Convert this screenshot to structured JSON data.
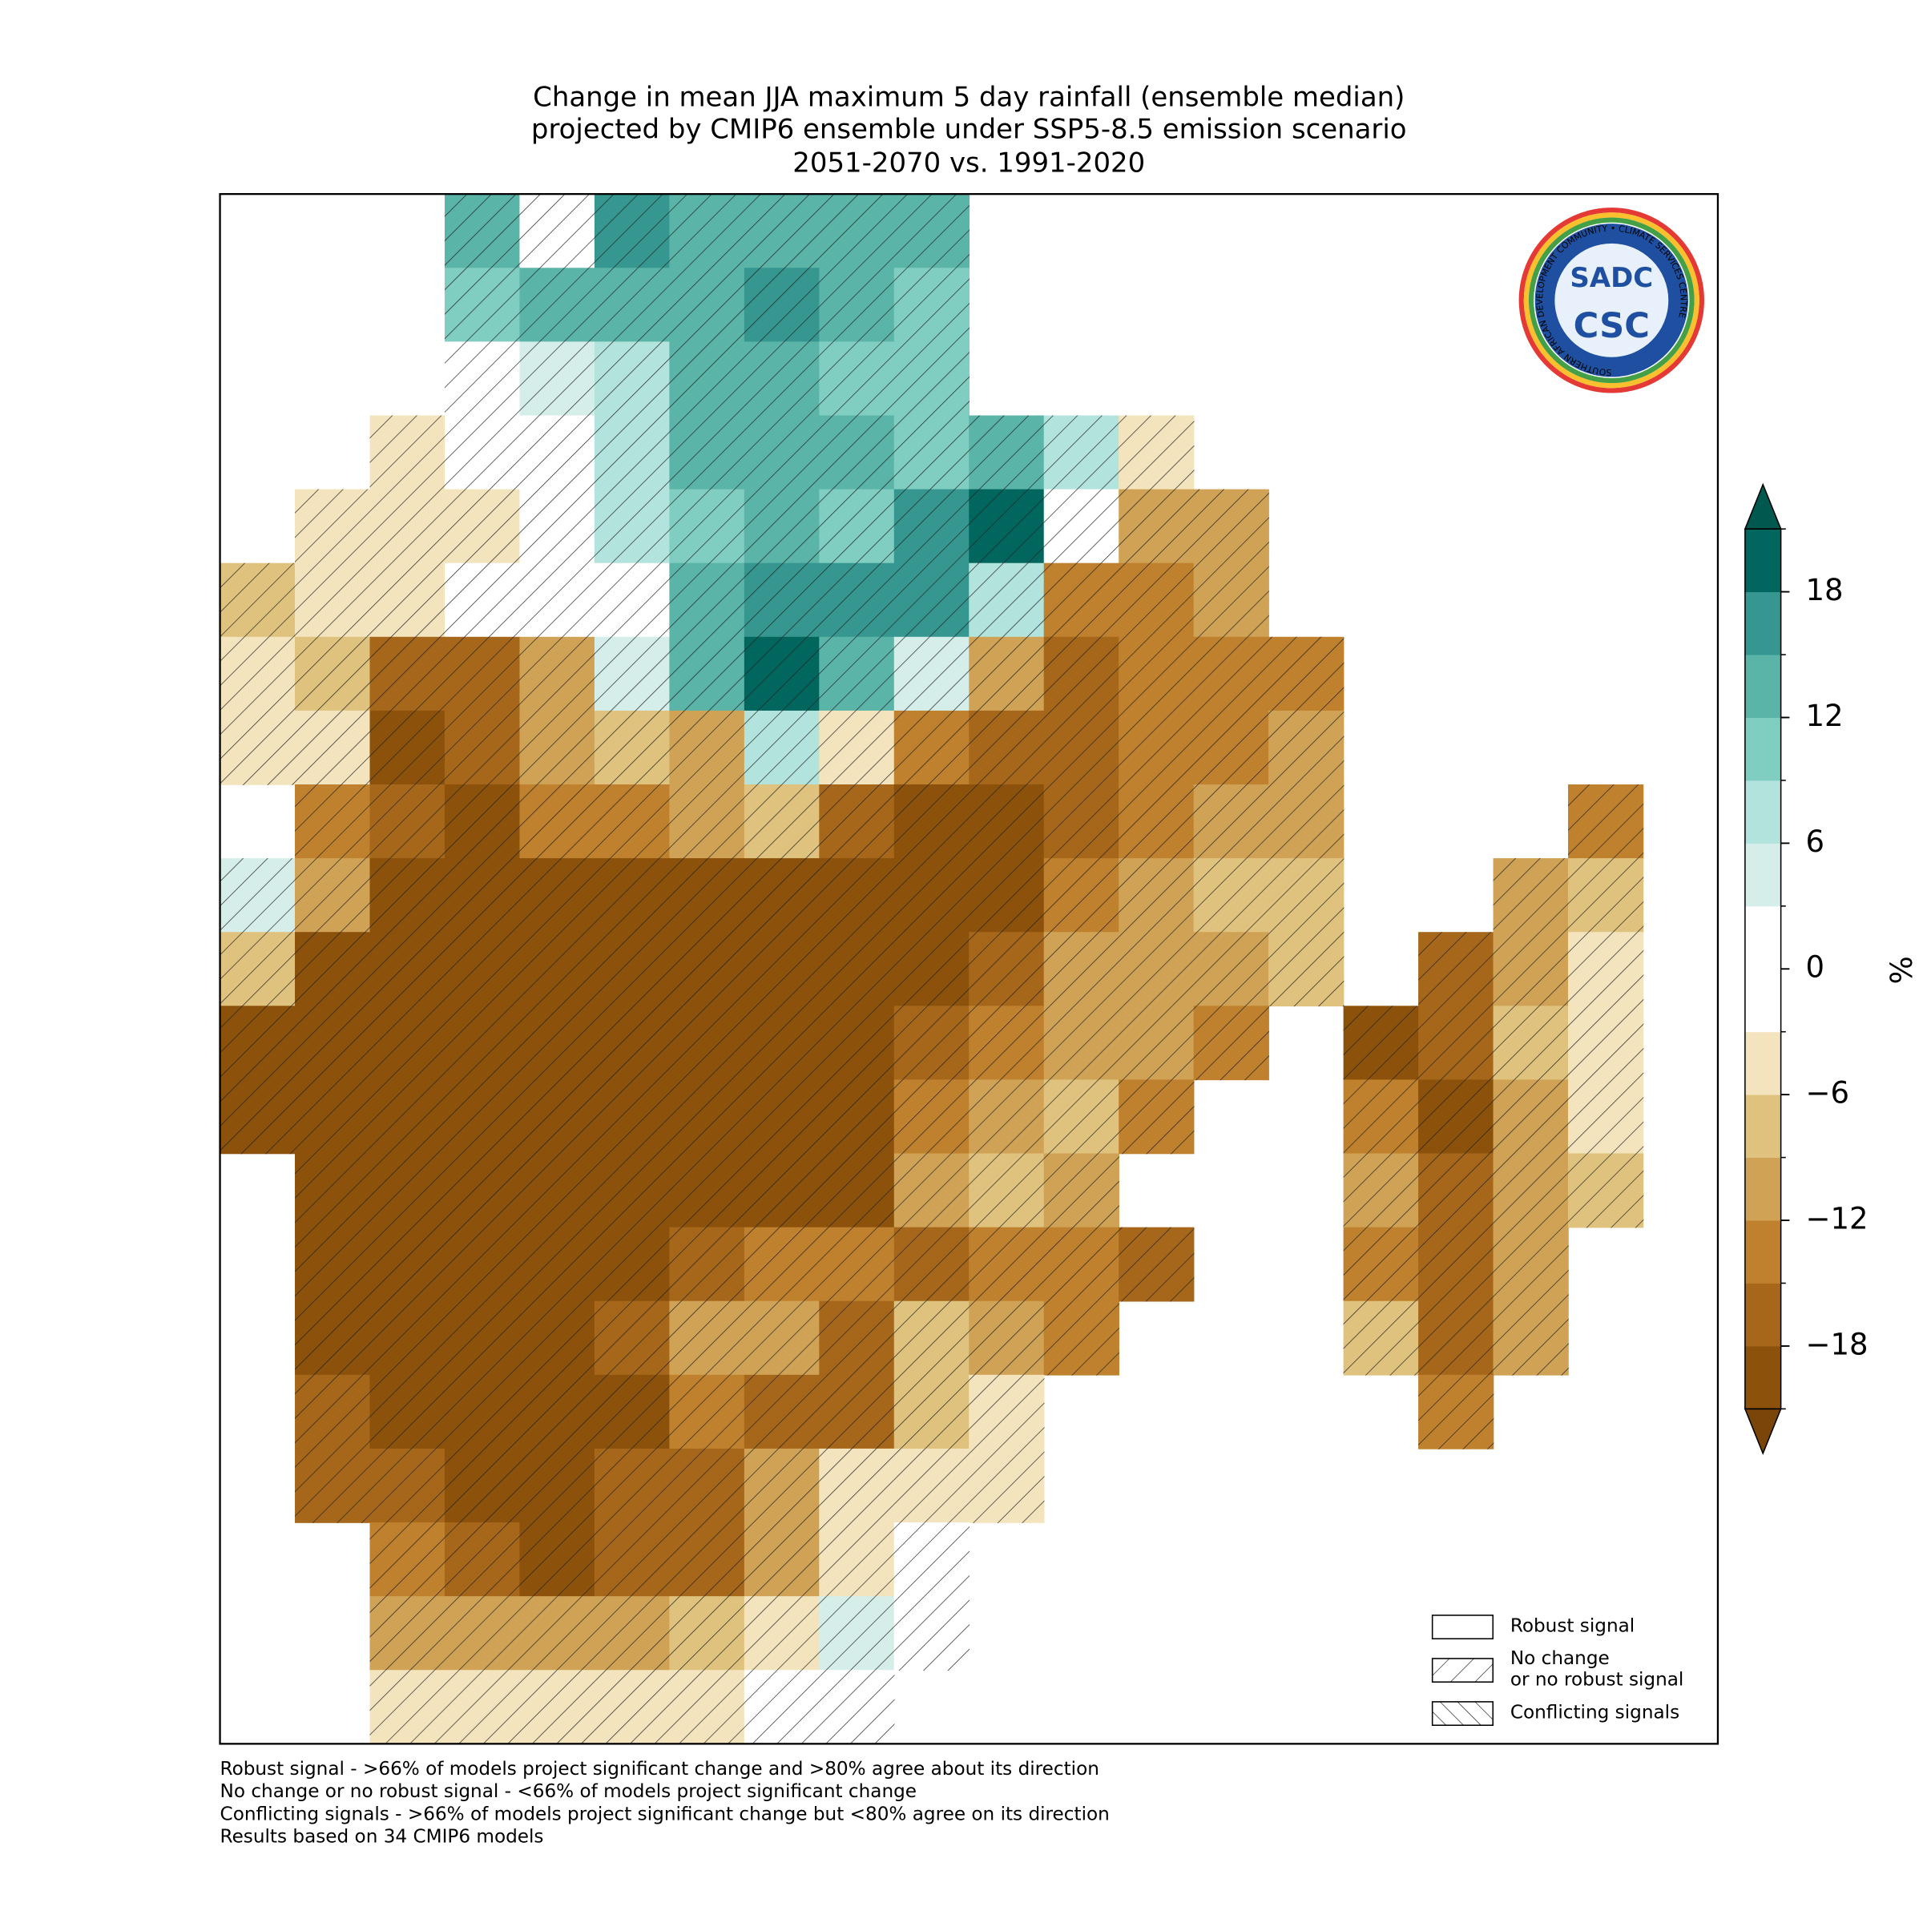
{
  "chart_data": {
    "type": "map",
    "title": [
      "Change in mean JJA maximum 5 day rainfall (ensemble median)",
      "projected by CMIP6 ensemble under SSP5-8.5 emission scenario",
      "2051-2070 vs. 1991-2020"
    ],
    "grid": [
      [
        null,
        null,
        null,
        14,
        2,
        16,
        14,
        14,
        13,
        12,
        null,
        null,
        null,
        null,
        null,
        null,
        null,
        null,
        null,
        null
      ],
      [
        null,
        null,
        null,
        9,
        14,
        13,
        14,
        16,
        12,
        10,
        null,
        null,
        null,
        null,
        null,
        null,
        null,
        null,
        null,
        null
      ],
      [
        null,
        null,
        null,
        1,
        3,
        8,
        14,
        12,
        11,
        10,
        null,
        null,
        null,
        null,
        null,
        null,
        null,
        null,
        null,
        null
      ],
      [
        null,
        null,
        -4,
        -2,
        0,
        6,
        12,
        12,
        14,
        10,
        12,
        8,
        -6,
        null,
        null,
        null,
        null,
        null,
        null,
        null
      ],
      [
        null,
        -6,
        -5,
        -4,
        0,
        8,
        10,
        12,
        10,
        16,
        18,
        2,
        -10,
        -12,
        null,
        null,
        null,
        null,
        null,
        null
      ],
      [
        -8,
        -6,
        -5,
        -2,
        -1,
        2,
        12,
        16,
        16,
        16,
        6,
        -15,
        -14,
        -12,
        null,
        null,
        null,
        null,
        null,
        null
      ],
      [
        -6,
        -7,
        -18,
        -18,
        -10,
        3,
        14,
        20,
        14,
        4,
        -12,
        -16,
        -15,
        -14,
        -15,
        null,
        null,
        null,
        null,
        null
      ],
      [
        -6,
        -4,
        -20,
        -16,
        -12,
        -8,
        -10,
        8,
        -6,
        -14,
        -16,
        -18,
        -15,
        -14,
        -12,
        null,
        null,
        null,
        null,
        null
      ],
      [
        null,
        -14,
        -18,
        -20,
        -14,
        -14,
        -12,
        -8,
        -18,
        -20,
        -20,
        -18,
        -14,
        -12,
        -10,
        null,
        null,
        null,
        -14,
        null
      ],
      [
        4,
        -10,
        -20,
        -21,
        -21,
        -20,
        -21,
        -21,
        -21,
        -21,
        -20,
        -14,
        -10,
        -9,
        -8,
        null,
        null,
        -10,
        -8,
        null
      ],
      [
        -8,
        -20,
        -21,
        -21,
        -21,
        -21,
        -21,
        -21,
        -21,
        -21,
        -16,
        -12,
        -10,
        -10,
        -8,
        null,
        -18,
        -12,
        -6,
        null
      ],
      [
        -21,
        -21,
        -21,
        -21,
        -21,
        -21,
        -21,
        -21,
        -21,
        -16,
        -14,
        -10,
        -12,
        -14,
        null,
        -21,
        -18,
        -8,
        -5,
        null
      ],
      [
        -21,
        -21,
        -21,
        -21,
        -21,
        -21,
        -21,
        -21,
        -21,
        -14,
        -10,
        -9,
        -14,
        null,
        null,
        -14,
        -20,
        -10,
        -6,
        null
      ],
      [
        null,
        -21,
        -21,
        -21,
        -21,
        -21,
        -21,
        -21,
        -21,
        -12,
        -8,
        -10,
        null,
        null,
        null,
        -12,
        -16,
        -12,
        -8,
        null
      ],
      [
        null,
        -21,
        -21,
        -21,
        -21,
        -21,
        -18,
        -14,
        -14,
        -16,
        -14,
        -14,
        -16,
        null,
        null,
        -14,
        -18,
        -12,
        null,
        null
      ],
      [
        null,
        -20,
        -21,
        -21,
        -21,
        -18,
        -10,
        -12,
        -16,
        -8,
        -10,
        -14,
        null,
        null,
        null,
        -8,
        -16,
        -10,
        null,
        null
      ],
      [
        null,
        -16,
        -21,
        -21,
        -21,
        -21,
        -14,
        -16,
        -18,
        -8,
        -6,
        null,
        null,
        null,
        null,
        null,
        -14,
        null,
        null,
        null
      ],
      [
        null,
        -16,
        -18,
        -20,
        -21,
        -18,
        -18,
        -12,
        -6,
        -4,
        -6,
        null,
        null,
        null,
        null,
        null,
        null,
        null,
        null,
        null
      ],
      [
        null,
        null,
        -14,
        -16,
        -21,
        -18,
        -16,
        -10,
        -6,
        -2,
        null,
        null,
        null,
        null,
        null,
        null,
        null,
        null,
        null,
        null
      ],
      [
        null,
        null,
        -12,
        -10,
        -10,
        -12,
        -8,
        -4,
        4,
        -1,
        null,
        null,
        null,
        null,
        null,
        null,
        null,
        null,
        null,
        null
      ],
      [
        null,
        null,
        -6,
        -6,
        -4,
        -5,
        -4,
        -3,
        -2,
        null,
        null,
        null,
        null,
        null,
        null,
        null,
        null,
        null,
        null,
        null
      ]
    ],
    "levels": [
      -21,
      -18,
      -15,
      -12,
      -9,
      -6,
      -3,
      0,
      3,
      6,
      9,
      12,
      15,
      18,
      21
    ],
    "colors": [
      "#8c510a",
      "#a6671b",
      "#bf812d",
      "#d0a255",
      "#dfc27d",
      "#f3e4bd",
      "#ffffff",
      "#ffffff",
      "#d5eeea",
      "#b2e3dc",
      "#80cdc1",
      "#5ab4a8",
      "#35978f",
      "#01665e"
    ],
    "under_color": "#7a4508",
    "over_color": "#01584f",
    "hatch": true,
    "cbar_ticks": [
      {
        "value": -18,
        "label": "−18"
      },
      {
        "value": -12,
        "label": "−12"
      },
      {
        "value": -6,
        "label": "−6"
      },
      0,
      6,
      12,
      18
    ],
    "cbar_label": "%",
    "legend": [
      {
        "label": [
          "Robust signal"
        ],
        "pattern": "none"
      },
      {
        "label": [
          "No change",
          "or no robust signal"
        ],
        "pattern": "hatch"
      },
      {
        "label": [
          "Conflicting signals"
        ],
        "pattern": "backhatch"
      }
    ],
    "notes": [
      "Robust signal - >66% of models project significant change and >80% agree about its direction",
      "No change or no robust signal - <66% of models project significant change",
      "Conflicting signals - >66% of models project significant change but <80% agree on its direction",
      "Results based on 34 CMIP6 models"
    ],
    "logo": {
      "top": "SADC",
      "bottom": "CSC",
      "ring": "SOUTHERN AFRICAN DEVELOPMENT COMMUNITY • CLIMATE SERVICES CENTRE"
    }
  }
}
